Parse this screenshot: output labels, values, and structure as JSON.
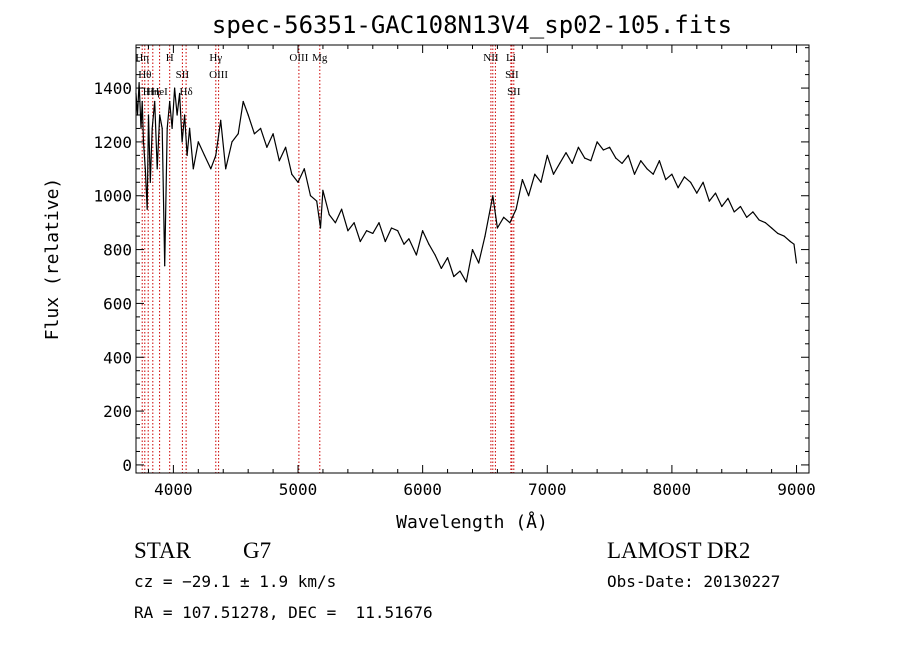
{
  "chart_data": {
    "type": "line",
    "title": "spec-56351-GAC108N13V4_sp02-105.fits",
    "xlabel": "Wavelength (Å)",
    "ylabel": "Flux (relative)",
    "xlim": [
      3700,
      9100
    ],
    "ylim": [
      -30,
      1560
    ],
    "x_ticks": [
      4000,
      5000,
      6000,
      7000,
      8000,
      9000
    ],
    "y_ticks": [
      0,
      200,
      400,
      600,
      800,
      1000,
      1200,
      1400
    ],
    "x_tick_labels": [
      "4000",
      "5000",
      "6000",
      "7000",
      "8000",
      "9000"
    ],
    "y_tick_labels": [
      "0",
      "200",
      "400",
      "600",
      "800",
      "1000",
      "1200",
      "1400"
    ],
    "grid": false,
    "series": [
      {
        "x": [
          3700,
          3712,
          3725,
          3740,
          3750,
          3760,
          3775,
          3790,
          3800,
          3815,
          3830,
          3850,
          3870,
          3890,
          3910,
          3930,
          3950,
          3970,
          3990,
          4010,
          4030,
          4050,
          4070,
          4090,
          4110,
          4130,
          4160,
          4200,
          4250,
          4300,
          4340,
          4380,
          4420,
          4470,
          4520,
          4560,
          4600,
          4650,
          4700,
          4750,
          4800,
          4850,
          4900,
          4950,
          5000,
          5050,
          5100,
          5150,
          5180,
          5200,
          5250,
          5300,
          5350,
          5400,
          5450,
          5500,
          5550,
          5600,
          5650,
          5700,
          5750,
          5800,
          5850,
          5890,
          5950,
          6000,
          6050,
          6100,
          6150,
          6200,
          6250,
          6300,
          6350,
          6400,
          6450,
          6500,
          6563,
          6600,
          6650,
          6700,
          6750,
          6800,
          6850,
          6900,
          6950,
          7000,
          7050,
          7100,
          7150,
          7200,
          7250,
          7300,
          7350,
          7400,
          7450,
          7500,
          7550,
          7600,
          7650,
          7700,
          7750,
          7800,
          7850,
          7900,
          7950,
          8000,
          8050,
          8100,
          8150,
          8200,
          8250,
          8300,
          8350,
          8400,
          8450,
          8500,
          8550,
          8600,
          8650,
          8700,
          8750,
          8800,
          8850,
          8900,
          8950,
          8980,
          9000
        ],
        "y": [
          1380,
          1300,
          1420,
          1250,
          1350,
          1200,
          1100,
          950,
          1300,
          1050,
          1250,
          1350,
          1100,
          1300,
          1250,
          740,
          1250,
          1350,
          1250,
          1400,
          1300,
          1380,
          1200,
          1300,
          1150,
          1250,
          1100,
          1200,
          1150,
          1100,
          1150,
          1280,
          1100,
          1200,
          1230,
          1350,
          1300,
          1230,
          1250,
          1180,
          1230,
          1130,
          1180,
          1080,
          1050,
          1100,
          1000,
          980,
          880,
          1020,
          930,
          900,
          950,
          870,
          900,
          830,
          870,
          860,
          900,
          830,
          880,
          870,
          820,
          840,
          780,
          870,
          820,
          780,
          730,
          770,
          700,
          720,
          680,
          800,
          750,
          850,
          1000,
          880,
          920,
          900,
          950,
          1060,
          1000,
          1080,
          1050,
          1150,
          1080,
          1120,
          1160,
          1120,
          1180,
          1140,
          1130,
          1200,
          1170,
          1180,
          1140,
          1120,
          1150,
          1080,
          1130,
          1100,
          1080,
          1130,
          1060,
          1080,
          1030,
          1070,
          1050,
          1010,
          1050,
          980,
          1010,
          960,
          990,
          940,
          960,
          920,
          940,
          910,
          900,
          880,
          860,
          850,
          830,
          820,
          750
        ]
      }
    ],
    "line_markers": [
      {
        "x": 3750,
        "label": "Hη"
      },
      {
        "x": 3771,
        "label": "Hθ"
      },
      {
        "x": 3798,
        "label": "Hι"
      },
      {
        "x": 3835,
        "label": "Hη"
      },
      {
        "x": 3889,
        "label": "HeI"
      },
      {
        "x": 3970,
        "label": "H"
      },
      {
        "x": 4072,
        "label": "SII"
      },
      {
        "x": 4102,
        "label": "Hδ"
      },
      {
        "x": 4340,
        "label": "Hγ"
      },
      {
        "x": 4363,
        "label": "OIII"
      },
      {
        "x": 5007,
        "label": "OIII"
      },
      {
        "x": 5175,
        "label": "Mg"
      },
      {
        "x": 6548,
        "label": "NII"
      },
      {
        "x": 6563,
        "label": ""
      },
      {
        "x": 6584,
        "label": ""
      },
      {
        "x": 6708,
        "label": "Li"
      },
      {
        "x": 6716,
        "label": "SII"
      },
      {
        "x": 6731,
        "label": "SII"
      }
    ]
  },
  "footer": {
    "object_type": "STAR",
    "subclass": "G7",
    "redshift": "cz = −29.1 ± 1.9 km/s",
    "coords": "RA = 107.51278, DEC =  11.51676",
    "survey": "LAMOST DR2",
    "obs_date": "Obs-Date: 20130227"
  },
  "colors": {
    "spectrum": "#000000",
    "marker_line": "#cc0000",
    "axes": "#000000"
  }
}
